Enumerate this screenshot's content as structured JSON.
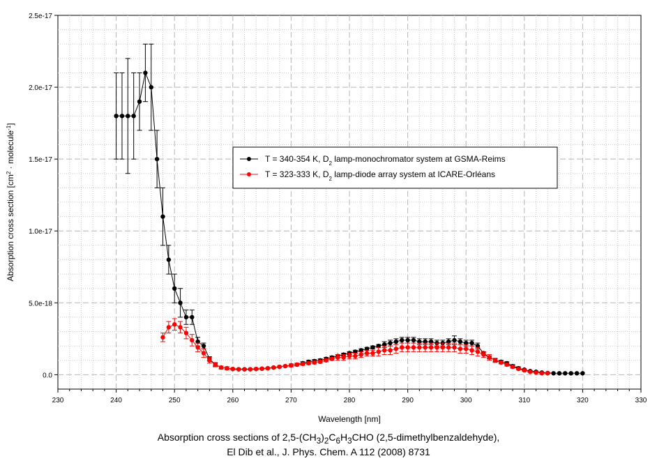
{
  "chart_data": {
    "type": "scatter",
    "title": "",
    "xlabel": "Wavelength [nm]",
    "ylabel_main": "Absorption cross section [cm",
    "ylabel_sup1": "2",
    "ylabel_mid": " · molecule",
    "ylabel_sup2": "-1",
    "ylabel_end": "]",
    "xlim": [
      230,
      330
    ],
    "ylim": [
      -1e-18,
      2.5e-17
    ],
    "x_ticks": [
      230,
      240,
      250,
      260,
      270,
      280,
      290,
      300,
      310,
      320,
      330
    ],
    "x_tick_labels": [
      "230",
      "240",
      "250",
      "260",
      "270",
      "280",
      "290",
      "300",
      "310",
      "320",
      "330"
    ],
    "y_ticks": [
      0,
      5e-18,
      1e-17,
      1.5e-17,
      2e-17,
      2.5e-17
    ],
    "y_tick_labels": [
      "0.0",
      "5.0e-18",
      "1.0e-17",
      "1.5e-17",
      "2.0e-17",
      "2.5e-17"
    ],
    "grid": true,
    "legend_position": "center-right",
    "series": [
      {
        "name_pre": "T = 340-354 K, D",
        "name_sub": "2",
        "name_post": " lamp-monochromator system at GSMA-Reims",
        "color": "#000000",
        "x": [
          240,
          241,
          242,
          243,
          244,
          245,
          246,
          247,
          248,
          249,
          250,
          251,
          252,
          253,
          254,
          255,
          256,
          257,
          258,
          259,
          260,
          261,
          262,
          263,
          264,
          265,
          266,
          267,
          268,
          269,
          270,
          271,
          272,
          273,
          274,
          275,
          276,
          277,
          278,
          279,
          280,
          281,
          282,
          283,
          284,
          285,
          286,
          287,
          288,
          289,
          290,
          291,
          292,
          293,
          294,
          295,
          296,
          297,
          298,
          299,
          300,
          301,
          302,
          303,
          304,
          305,
          306,
          307,
          308,
          309,
          310,
          311,
          312,
          313,
          314,
          315,
          316,
          317,
          318,
          319,
          320
        ],
        "y": [
          1.8e-17,
          1.8e-17,
          1.8e-17,
          1.8e-17,
          1.9e-17,
          2.1e-17,
          2e-17,
          1.5e-17,
          1.1e-17,
          8e-18,
          6e-18,
          5e-18,
          4e-18,
          4e-18,
          2.3e-18,
          2e-18,
          1.1e-18,
          7e-19,
          5e-19,
          4.5e-19,
          4e-19,
          3.8e-19,
          3.8e-19,
          3.8e-19,
          4e-19,
          4.2e-19,
          4.5e-19,
          5e-19,
          5.5e-19,
          6e-19,
          6.5e-19,
          7e-19,
          8e-19,
          9e-19,
          9.5e-19,
          1e-18,
          1.1e-18,
          1.2e-18,
          1.3e-18,
          1.4e-18,
          1.5e-18,
          1.6e-18,
          1.7e-18,
          1.8e-18,
          1.9e-18,
          2e-18,
          2.1e-18,
          2.2e-18,
          2.3e-18,
          2.4e-18,
          2.4e-18,
          2.4e-18,
          2.3e-18,
          2.3e-18,
          2.3e-18,
          2.2e-18,
          2.2e-18,
          2.3e-18,
          2.4e-18,
          2.3e-18,
          2.2e-18,
          2.2e-18,
          2e-18,
          1.5e-18,
          1.2e-18,
          1e-18,
          9e-19,
          8e-19,
          6e-19,
          4.5e-19,
          3.5e-19,
          2.5e-19,
          2e-19,
          1.5e-19,
          1.2e-19,
          1e-19,
          1e-19,
          1e-19,
          1e-19,
          1e-19,
          1e-19
        ],
        "err": [
          3e-18,
          3e-18,
          4e-18,
          3e-18,
          2e-18,
          2e-18,
          3e-18,
          2e-18,
          2e-18,
          1e-18,
          1e-18,
          1e-18,
          5e-19,
          5e-19,
          3e-19,
          2e-19,
          1.5e-19,
          1e-19,
          1e-19,
          1e-19,
          5e-20,
          5e-20,
          5e-20,
          5e-20,
          5e-20,
          5e-20,
          5e-20,
          5e-20,
          5e-20,
          5e-20,
          1e-19,
          1e-19,
          1e-19,
          1e-19,
          1e-19,
          1e-19,
          1e-19,
          1e-19,
          1e-19,
          1e-19,
          1e-19,
          1e-19,
          1e-19,
          1e-19,
          1e-19,
          1e-19,
          2e-19,
          2e-19,
          2e-19,
          2e-19,
          2e-19,
          2e-19,
          2e-19,
          2e-19,
          2e-19,
          2e-19,
          2e-19,
          2e-19,
          3e-19,
          2e-19,
          2e-19,
          2e-19,
          2e-19,
          1e-19,
          1e-19,
          1e-19,
          1e-19,
          1e-19,
          1e-19,
          1e-19,
          5e-20,
          5e-20,
          5e-20,
          3e-20,
          3e-20,
          0,
          0,
          0,
          0,
          0,
          0
        ]
      },
      {
        "name_pre": "T = 323-333 K, D",
        "name_sub": "2",
        "name_post": " lamp-diode array system at ICARE-Orléans",
        "color": "#ff0000",
        "x": [
          248,
          249,
          250,
          251,
          252,
          253,
          254,
          255,
          256,
          257,
          258,
          259,
          260,
          261,
          262,
          263,
          264,
          265,
          266,
          267,
          268,
          269,
          270,
          271,
          272,
          273,
          274,
          275,
          276,
          277,
          278,
          279,
          280,
          281,
          282,
          283,
          284,
          285,
          286,
          287,
          288,
          289,
          290,
          291,
          292,
          293,
          294,
          295,
          296,
          297,
          298,
          299,
          300,
          301,
          302,
          303,
          304,
          305,
          306,
          307,
          308,
          309,
          310,
          311,
          312,
          313,
          314
        ],
        "y": [
          2.6e-18,
          3.3e-18,
          3.5e-18,
          3.3e-18,
          2.9e-18,
          2.4e-18,
          1.9e-18,
          1.5e-18,
          1e-18,
          7e-19,
          5e-19,
          4.5e-19,
          4e-19,
          3.8e-19,
          3.8e-19,
          3.8e-19,
          4e-19,
          4.2e-19,
          4.5e-19,
          5e-19,
          5.5e-19,
          6e-19,
          6.5e-19,
          7e-19,
          7.5e-19,
          8e-19,
          8.5e-19,
          9e-19,
          1e-18,
          1.1e-18,
          1.2e-18,
          1.2e-18,
          1.3e-18,
          1.3e-18,
          1.4e-18,
          1.5e-18,
          1.5e-18,
          1.6e-18,
          1.7e-18,
          1.7e-18,
          1.8e-18,
          1.9e-18,
          1.9e-18,
          1.9e-18,
          1.9e-18,
          1.9e-18,
          1.9e-18,
          1.9e-18,
          1.9e-18,
          1.9e-18,
          1.9e-18,
          1.8e-18,
          1.8e-18,
          1.7e-18,
          1.6e-18,
          1.4e-18,
          1.2e-18,
          1e-18,
          8.5e-19,
          7e-19,
          5.5e-19,
          4e-19,
          3e-19,
          2e-19,
          1.5e-19,
          1e-19,
          1e-19
        ],
        "err": [
          3e-19,
          4e-19,
          4e-19,
          4e-19,
          4e-19,
          4e-19,
          3e-19,
          3e-19,
          2e-19,
          1.5e-19,
          1e-19,
          1e-19,
          5e-20,
          5e-20,
          5e-20,
          5e-20,
          5e-20,
          5e-20,
          5e-20,
          5e-20,
          5e-20,
          5e-20,
          1e-19,
          1e-19,
          1e-19,
          1e-19,
          1e-19,
          1e-19,
          1e-19,
          1e-19,
          2e-19,
          2e-19,
          2e-19,
          2e-19,
          2e-19,
          2e-19,
          2e-19,
          3e-19,
          3e-19,
          3e-19,
          3e-19,
          3e-19,
          3e-19,
          3e-19,
          3e-19,
          3e-19,
          3e-19,
          3e-19,
          3e-19,
          3e-19,
          3e-19,
          3e-19,
          3e-19,
          3e-19,
          3e-19,
          2e-19,
          2e-19,
          1.5e-19,
          1e-19,
          1e-19,
          1e-19,
          5e-20,
          5e-20,
          5e-20,
          3e-20,
          3e-20,
          3e-20
        ]
      }
    ]
  },
  "caption": {
    "line1_a": "Absorption cross sections of 2,5-(CH",
    "sub1": "3",
    "line1_b": ")",
    "sub2": "2",
    "line1_c": "C",
    "sub3": "6",
    "line1_d": "H",
    "sub4": "3",
    "line1_e": "CHO (2,5-dimethylbenzaldehyde),",
    "line2": "El Dib et al., J. Phys. Chem. A 112 (2008) 8731"
  }
}
